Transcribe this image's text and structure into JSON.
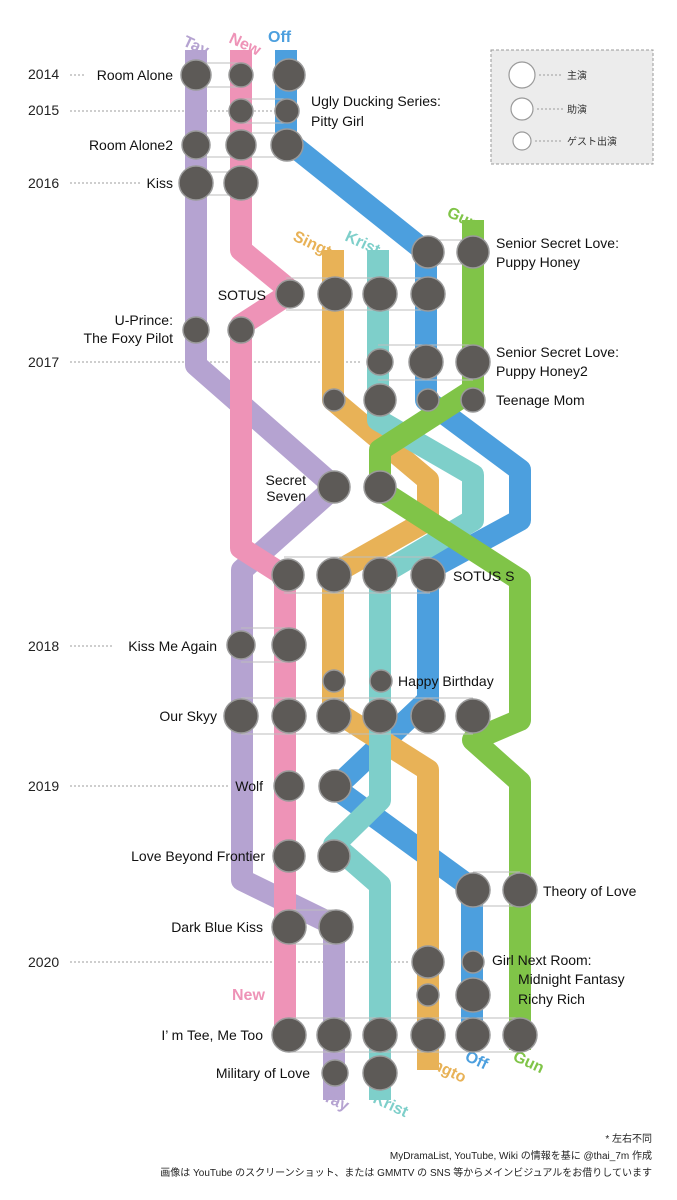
{
  "colors": {
    "tay": "#b5a3d1",
    "new": "#ee93b7",
    "off": "#4c9fde",
    "singto": "#e8b257",
    "krist": "#7ecfca",
    "gun": "#80c448",
    "face": "#5d5a57",
    "legend_bg": "#ececec"
  },
  "actors": {
    "tay": "Tay",
    "new": "New",
    "off": "Off",
    "singto": "Singto",
    "krist": "Krist",
    "gun": "Gun"
  },
  "years": [
    "2014",
    "2015",
    "2016",
    "2017",
    "2018",
    "2019",
    "2020"
  ],
  "works": {
    "room_alone": "Room Alone",
    "ugly_ducking_1": "Ugly Ducking Series:",
    "ugly_ducking_2": "Pitty Girl",
    "room_alone2": "Room Alone2",
    "kiss": "Kiss",
    "ssl_1": "Senior Secret Love:",
    "ssl_2": "Puppy Honey",
    "sotus": "SOTUS",
    "u_prince_1": "U-Prince:",
    "u_prince_2": "The Foxy Pilot",
    "ssl2_1": "Senior Secret Love:",
    "ssl2_2": "Puppy Honey2",
    "teenage_mom": "Teenage Mom",
    "secret_seven_1": "Secret",
    "secret_seven_2": "Seven",
    "sotus_s": "SOTUS S",
    "kiss_me_again": "Kiss Me Again",
    "happy_birthday": "Happy Birthday",
    "our_skyy": "Our Skyy",
    "wolf": "Wolf",
    "love_beyond_frontier": "Love Beyond Frontier",
    "theory_of_love": "Theory of Love",
    "dark_blue_kiss": "Dark Blue Kiss",
    "girl_next_room_1": "Girl Next Room:",
    "girl_next_room_2": "Midnight Fantasy",
    "richy_rich": "Richy Rich",
    "im_tee_me_too": "I’ m Tee, Me Too",
    "military_of_love": "Military of Love"
  },
  "legend": {
    "lead": "主演",
    "support": "助演",
    "guest": "ゲスト出演"
  },
  "footer": {
    "note": "* 左右不同",
    "source": "MyDramaList, YouTube, Wiki の情報を基に @thai_7m 作成",
    "credit": "画像は YouTube のスクリーンショット、または GMMTV の SNS 等からメインビジュアルをお借りしています"
  }
}
